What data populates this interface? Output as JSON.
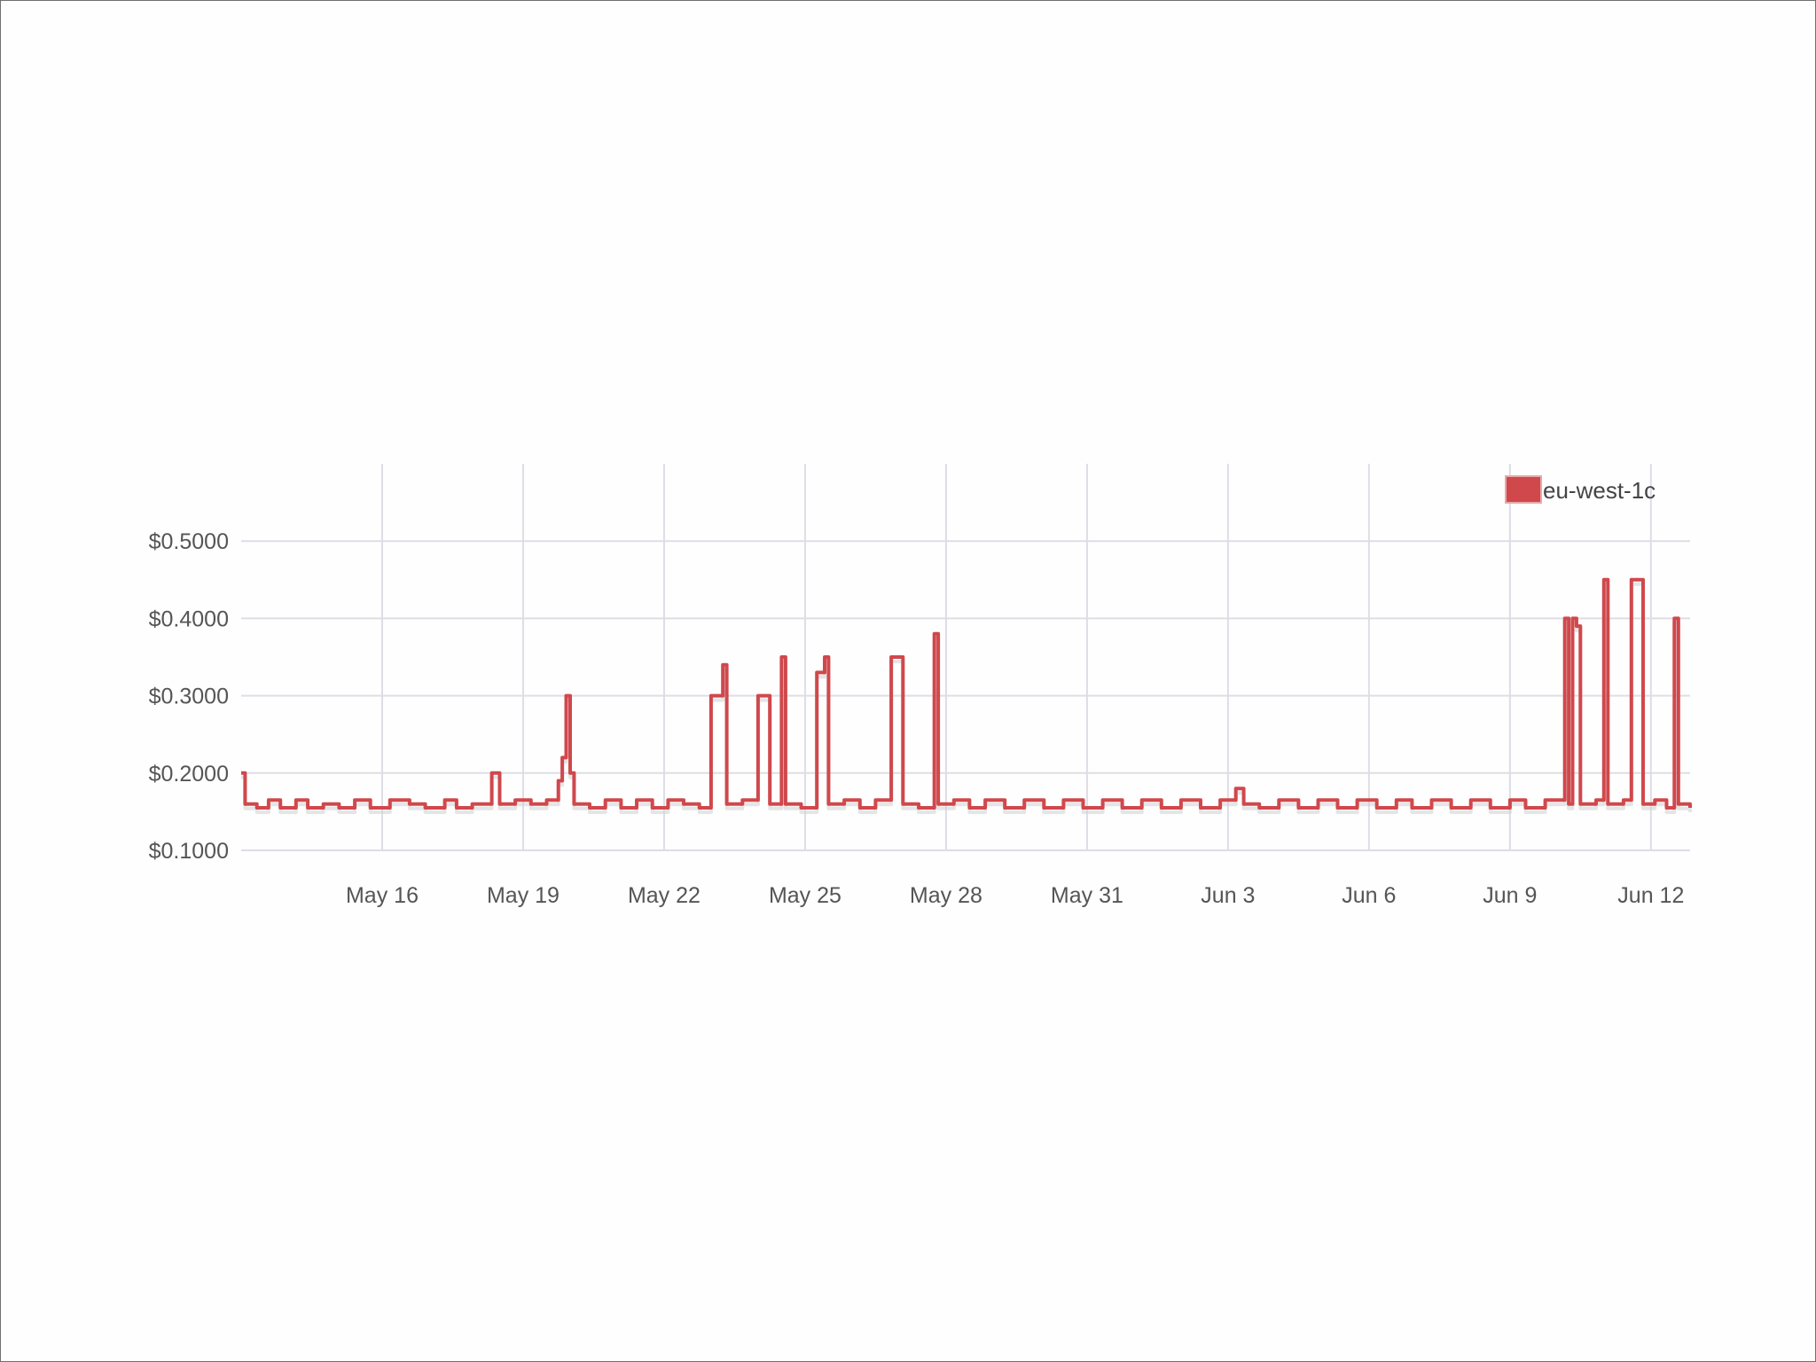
{
  "chart_data": {
    "type": "line",
    "series_color": "#d0484c",
    "grid_color": "#dedde6",
    "grid": true,
    "legend_position": "top-right",
    "legend": [
      "eu-west-1c"
    ],
    "x_unit": "date",
    "x_range": [
      "2014-05-13",
      "2014-06-12T20:00"
    ],
    "x_ticks": [
      {
        "date": "2014-05-16",
        "label": "May 16"
      },
      {
        "date": "2014-05-19",
        "label": "May 19"
      },
      {
        "date": "2014-05-22",
        "label": "May 22"
      },
      {
        "date": "2014-05-25",
        "label": "May 25"
      },
      {
        "date": "2014-05-28",
        "label": "May 28"
      },
      {
        "date": "2014-05-31",
        "label": "May 31"
      },
      {
        "date": "2014-06-03",
        "label": "Jun 3"
      },
      {
        "date": "2014-06-06",
        "label": "Jun 6"
      },
      {
        "date": "2014-06-09",
        "label": "Jun 9"
      },
      {
        "date": "2014-06-12",
        "label": "Jun 12"
      }
    ],
    "y_range": [
      0.1,
      0.6
    ],
    "y_ticks": [
      {
        "value": 0.1,
        "label": "$0.1000"
      },
      {
        "value": 0.2,
        "label": "$0.2000"
      },
      {
        "value": 0.3,
        "label": "$0.3000"
      },
      {
        "value": 0.4,
        "label": "$0.4000"
      },
      {
        "value": 0.5,
        "label": "$0.5000"
      }
    ],
    "series": [
      {
        "name": "eu-west-1c",
        "points": [
          [
            "2014-05-13T00:00",
            0.2
          ],
          [
            "2014-05-13T02:00",
            0.16
          ],
          [
            "2014-05-13T08:00",
            0.155
          ],
          [
            "2014-05-13T14:00",
            0.165
          ],
          [
            "2014-05-13T20:00",
            0.155
          ],
          [
            "2014-05-14T04:00",
            0.165
          ],
          [
            "2014-05-14T10:00",
            0.155
          ],
          [
            "2014-05-14T18:00",
            0.16
          ],
          [
            "2014-05-15T02:00",
            0.155
          ],
          [
            "2014-05-15T10:00",
            0.165
          ],
          [
            "2014-05-15T18:00",
            0.155
          ],
          [
            "2014-05-16T04:00",
            0.165
          ],
          [
            "2014-05-16T14:00",
            0.16
          ],
          [
            "2014-05-16T22:00",
            0.155
          ],
          [
            "2014-05-17T08:00",
            0.165
          ],
          [
            "2014-05-17T14:00",
            0.155
          ],
          [
            "2014-05-17T22:00",
            0.16
          ],
          [
            "2014-05-18T08:00",
            0.2
          ],
          [
            "2014-05-18T10:00",
            0.2
          ],
          [
            "2014-05-18T12:00",
            0.16
          ],
          [
            "2014-05-18T20:00",
            0.165
          ],
          [
            "2014-05-19T04:00",
            0.16
          ],
          [
            "2014-05-19T12:00",
            0.165
          ],
          [
            "2014-05-19T18:00",
            0.19
          ],
          [
            "2014-05-19T20:00",
            0.22
          ],
          [
            "2014-05-19T22:00",
            0.3
          ],
          [
            "2014-05-20T00:00",
            0.2
          ],
          [
            "2014-05-20T02:00",
            0.16
          ],
          [
            "2014-05-20T10:00",
            0.155
          ],
          [
            "2014-05-20T18:00",
            0.165
          ],
          [
            "2014-05-21T02:00",
            0.155
          ],
          [
            "2014-05-21T10:00",
            0.165
          ],
          [
            "2014-05-21T18:00",
            0.155
          ],
          [
            "2014-05-22T02:00",
            0.165
          ],
          [
            "2014-05-22T10:00",
            0.16
          ],
          [
            "2014-05-22T18:00",
            0.155
          ],
          [
            "2014-05-23T00:00",
            0.3
          ],
          [
            "2014-05-23T04:00",
            0.3
          ],
          [
            "2014-05-23T06:00",
            0.34
          ],
          [
            "2014-05-23T08:00",
            0.16
          ],
          [
            "2014-05-23T16:00",
            0.165
          ],
          [
            "2014-05-24T00:00",
            0.3
          ],
          [
            "2014-05-24T04:00",
            0.3
          ],
          [
            "2014-05-24T06:00",
            0.16
          ],
          [
            "2014-05-24T12:00",
            0.35
          ],
          [
            "2014-05-24T14:00",
            0.16
          ],
          [
            "2014-05-24T22:00",
            0.155
          ],
          [
            "2014-05-25T06:00",
            0.33
          ],
          [
            "2014-05-25T10:00",
            0.35
          ],
          [
            "2014-05-25T12:00",
            0.16
          ],
          [
            "2014-05-25T20:00",
            0.165
          ],
          [
            "2014-05-26T04:00",
            0.155
          ],
          [
            "2014-05-26T12:00",
            0.165
          ],
          [
            "2014-05-26T20:00",
            0.35
          ],
          [
            "2014-05-27T00:00",
            0.35
          ],
          [
            "2014-05-27T02:00",
            0.16
          ],
          [
            "2014-05-27T10:00",
            0.155
          ],
          [
            "2014-05-27T18:00",
            0.38
          ],
          [
            "2014-05-27T20:00",
            0.16
          ],
          [
            "2014-05-28T04:00",
            0.165
          ],
          [
            "2014-05-28T12:00",
            0.155
          ],
          [
            "2014-05-28T20:00",
            0.165
          ],
          [
            "2014-05-29T06:00",
            0.155
          ],
          [
            "2014-05-29T16:00",
            0.165
          ],
          [
            "2014-05-30T02:00",
            0.155
          ],
          [
            "2014-05-30T12:00",
            0.165
          ],
          [
            "2014-05-30T22:00",
            0.155
          ],
          [
            "2014-05-31T08:00",
            0.165
          ],
          [
            "2014-05-31T18:00",
            0.155
          ],
          [
            "2014-06-01T04:00",
            0.165
          ],
          [
            "2014-06-01T14:00",
            0.155
          ],
          [
            "2014-06-02T00:00",
            0.165
          ],
          [
            "2014-06-02T10:00",
            0.155
          ],
          [
            "2014-06-02T20:00",
            0.165
          ],
          [
            "2014-06-03T04:00",
            0.18
          ],
          [
            "2014-06-03T08:00",
            0.16
          ],
          [
            "2014-06-03T16:00",
            0.155
          ],
          [
            "2014-06-04T02:00",
            0.165
          ],
          [
            "2014-06-04T12:00",
            0.155
          ],
          [
            "2014-06-04T22:00",
            0.165
          ],
          [
            "2014-06-05T08:00",
            0.155
          ],
          [
            "2014-06-05T18:00",
            0.165
          ],
          [
            "2014-06-06T04:00",
            0.155
          ],
          [
            "2014-06-06T14:00",
            0.165
          ],
          [
            "2014-06-06T22:00",
            0.155
          ],
          [
            "2014-06-07T08:00",
            0.165
          ],
          [
            "2014-06-07T18:00",
            0.155
          ],
          [
            "2014-06-08T04:00",
            0.165
          ],
          [
            "2014-06-08T14:00",
            0.155
          ],
          [
            "2014-06-09T00:00",
            0.165
          ],
          [
            "2014-06-09T08:00",
            0.155
          ],
          [
            "2014-06-09T18:00",
            0.165
          ],
          [
            "2014-06-10T04:00",
            0.4
          ],
          [
            "2014-06-10T06:00",
            0.16
          ],
          [
            "2014-06-10T08:00",
            0.4
          ],
          [
            "2014-06-10T10:00",
            0.39
          ],
          [
            "2014-06-10T12:00",
            0.16
          ],
          [
            "2014-06-10T20:00",
            0.165
          ],
          [
            "2014-06-11T00:00",
            0.45
          ],
          [
            "2014-06-11T02:00",
            0.16
          ],
          [
            "2014-06-11T10:00",
            0.165
          ],
          [
            "2014-06-11T14:00",
            0.45
          ],
          [
            "2014-06-11T18:00",
            0.45
          ],
          [
            "2014-06-11T20:00",
            0.16
          ],
          [
            "2014-06-12T02:00",
            0.165
          ],
          [
            "2014-06-12T08:00",
            0.155
          ],
          [
            "2014-06-12T12:00",
            0.4
          ],
          [
            "2014-06-12T14:00",
            0.16
          ],
          [
            "2014-06-12T20:00",
            0.155
          ]
        ]
      }
    ]
  }
}
